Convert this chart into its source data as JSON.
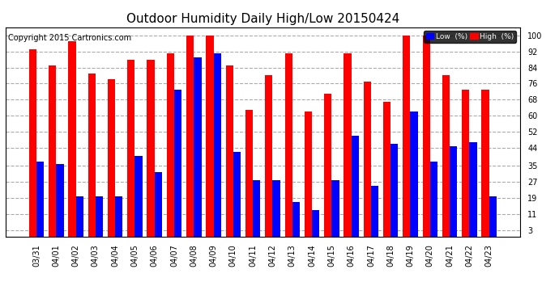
{
  "title": "Outdoor Humidity Daily High/Low 20150424",
  "copyright": "Copyright 2015 Cartronics.com",
  "dates": [
    "03/31",
    "04/01",
    "04/02",
    "04/03",
    "04/04",
    "04/05",
    "04/06",
    "04/07",
    "04/08",
    "04/09",
    "04/10",
    "04/11",
    "04/12",
    "04/13",
    "04/14",
    "04/15",
    "04/16",
    "04/17",
    "04/18",
    "04/19",
    "04/20",
    "04/21",
    "04/22",
    "04/23"
  ],
  "high": [
    93,
    85,
    97,
    81,
    78,
    88,
    88,
    91,
    100,
    100,
    85,
    63,
    80,
    91,
    62,
    71,
    91,
    77,
    67,
    100,
    100,
    80,
    73,
    73
  ],
  "low": [
    37,
    36,
    20,
    20,
    20,
    40,
    32,
    73,
    89,
    91,
    42,
    28,
    28,
    17,
    13,
    28,
    50,
    25,
    46,
    62,
    37,
    45,
    47,
    20
  ],
  "high_color": "#ff0000",
  "low_color": "#0000ff",
  "bg_color": "#ffffff",
  "grid_color": "#aaaaaa",
  "title_fontsize": 11,
  "tick_fontsize": 7,
  "copyright_fontsize": 7,
  "ylabel_values": [
    3,
    11,
    19,
    27,
    35,
    44,
    52,
    60,
    68,
    76,
    84,
    92,
    100
  ],
  "ylim": [
    0,
    104
  ],
  "bar_width": 0.38
}
